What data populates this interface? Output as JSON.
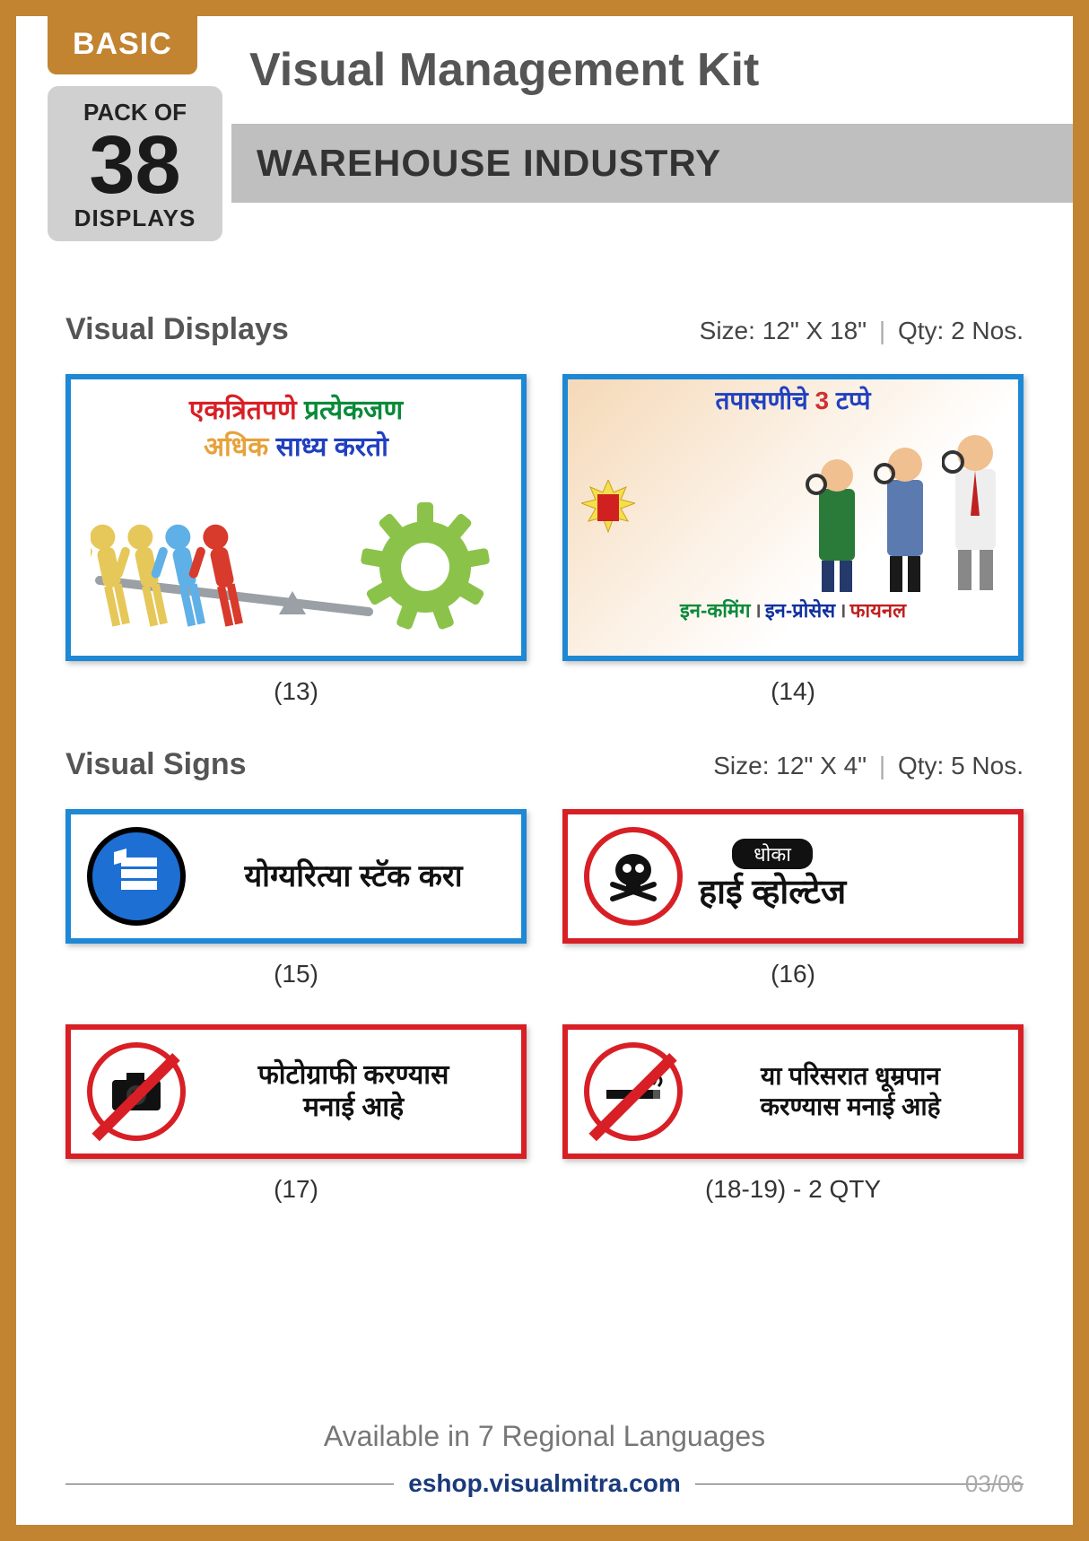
{
  "frame_border_color": "#c28431",
  "header": {
    "basic_label": "BASIC",
    "pack_top": "PACK OF",
    "pack_number": "38",
    "pack_bottom": "DISPLAYS",
    "title": "Visual Management Kit",
    "subtitle": "WAREHOUSE INDUSTRY"
  },
  "section_displays": {
    "heading": "Visual Displays",
    "size_label": "Size:",
    "size_value": "12\" X 18\"",
    "qty_label": "Qty:",
    "qty_value": "2 Nos.",
    "items": [
      {
        "caption": "(13)",
        "border_color": "#1e88d4",
        "line1_parts": [
          {
            "text": "एकत्रितपणे ",
            "color": "#d81f26"
          },
          {
            "text": "प्रत्येकजण",
            "color": "#0a8a3a"
          }
        ],
        "line2_parts": [
          {
            "text": "अधिक ",
            "color": "#e6a23c"
          },
          {
            "text": "साध्य करतो",
            "color": "#2040c0"
          }
        ],
        "gear_color": "#8bc34a",
        "people_colors": [
          "#e6c85a",
          "#e6c85a",
          "#5fb0e6",
          "#d83a2c"
        ]
      },
      {
        "caption": "(14)",
        "border_color": "#1e88d4",
        "title_pre": "तपासणीचे ",
        "title_num": "3",
        "title_post": " टप्पे",
        "bottom_a": "इन-कमिंग",
        "bottom_b": "इन-प्रोसेस",
        "bottom_c": "फायनल"
      }
    ]
  },
  "section_signs": {
    "heading": "Visual Signs",
    "size_label": "Size:",
    "size_value": "12\" X 4\"",
    "qty_label": "Qty:",
    "qty_value": "5 Nos.",
    "items": [
      {
        "caption": "(15)",
        "border_color": "#1e88d4",
        "icon_ring_color": "#000",
        "icon_fill": "#1e6fd4",
        "icon_type": "stack",
        "text": "योग्यरित्या स्टॅक करा"
      },
      {
        "caption": "(16)",
        "border_color": "#d81f26",
        "icon_ring_color": "#d81f26",
        "icon_fill": "#fff",
        "icon_type": "skull",
        "badge_top": "धोका",
        "text": "हाई व्होल्टेज"
      },
      {
        "caption": "(17)",
        "border_color": "#d81f26",
        "icon_ring_color": "#d81f26",
        "icon_fill": "#fff",
        "icon_type": "camera",
        "text_line1": "फोटोग्राफी करण्यास",
        "text_line2": "मनाई आहे"
      },
      {
        "caption": "(18-19) - 2 QTY",
        "border_color": "#d81f26",
        "icon_ring_color": "#d81f26",
        "icon_fill": "#fff",
        "icon_type": "smoke",
        "text_line1": "या परिसरात धूम्रपान",
        "text_line2": "करण्यास मनाई आहे"
      }
    ]
  },
  "footer": {
    "available": "Available in 7 Regional Languages",
    "url": "eshop.visualmitra.com",
    "page": "03/06"
  }
}
